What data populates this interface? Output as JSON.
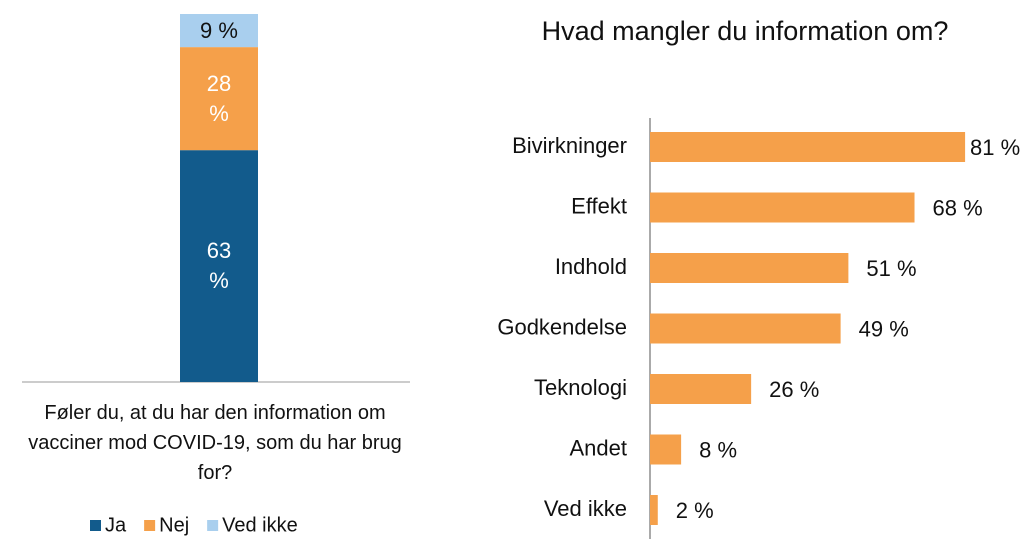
{
  "chart_data": [
    {
      "type": "stacked_bar",
      "categories": [
        "Føler du, at du har den information om vacciner mod COVID-19, som du har brug for?"
      ],
      "series": [
        {
          "name": "Ja",
          "color": "#125b8c",
          "values": [
            63
          ],
          "value_labels": [
            "63 %"
          ]
        },
        {
          "name": "Nej",
          "color": "#f5a04a",
          "values": [
            28
          ],
          "value_labels": [
            "28 %"
          ]
        },
        {
          "name": "Ved ikke",
          "color": "#a9cfee",
          "values": [
            9
          ],
          "value_labels": [
            "9 %"
          ]
        }
      ],
      "ylim": [
        0,
        100
      ],
      "legend": "bottom"
    },
    {
      "type": "hbar",
      "title": "Hvad mangler du information om?",
      "categories": [
        "Bivirkninger",
        "Effekt",
        "Indhold",
        "Godkendelse",
        "Teknologi",
        "Andet",
        "Ved ikke"
      ],
      "values": [
        81,
        68,
        51,
        49,
        26,
        8,
        2
      ],
      "value_labels": [
        "81 %",
        "68 %",
        "51 %",
        "49 %",
        "26 %",
        "8 %",
        "2 %"
      ],
      "color": "#f5a04a",
      "xlim": [
        0,
        100
      ]
    }
  ]
}
